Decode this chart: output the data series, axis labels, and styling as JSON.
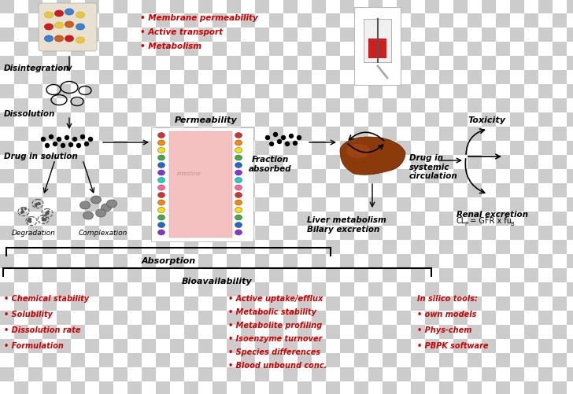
{
  "bg_checker_light": "#cccccc",
  "bg_checker_dark": "#999999",
  "fig_width": 7.28,
  "fig_height": 5.02,
  "red_color": "#cc0000",
  "black_color": "#000000",
  "top_bullets": [
    "• Membrane permeability",
    "• Active transport",
    "• Metabolism"
  ],
  "left_col_bullets": [
    "• Chemical stability",
    "• Solubility",
    "• Dissolution rate",
    "• Formulation"
  ],
  "mid_col_bullets": [
    "• Active uptake/efflux",
    "• Metabolic stability",
    "• Metabolite profiling",
    "• Isoenzyme turnover",
    "• Species differences",
    "• Blood unbound conc."
  ],
  "right_col_bullets": [
    "In silico tools:",
    "• own models",
    "• Phys-chem",
    "• PBPK software"
  ],
  "label_disintegration": "Disintegration",
  "label_dissolution": "Dissolution",
  "label_drug_solution": "Drug in solution",
  "label_degradation": "Degradation",
  "label_complexation": "Complexation",
  "label_permeability": "Permeability",
  "label_fraction": "Fraction\nabsorbed",
  "label_drug_systemic": "Drug in\nsystemic\ncirculation",
  "label_liver": "Liver metabolism\nBilary excretion",
  "label_renal": "Renal excretion",
  "label_renal_formula": "CL",
  "label_renal_formula2": " = GFR x fu",
  "label_toxicity": "Toxicity",
  "label_absorption": "Absorption",
  "label_bioavailability": "Bioavailability"
}
